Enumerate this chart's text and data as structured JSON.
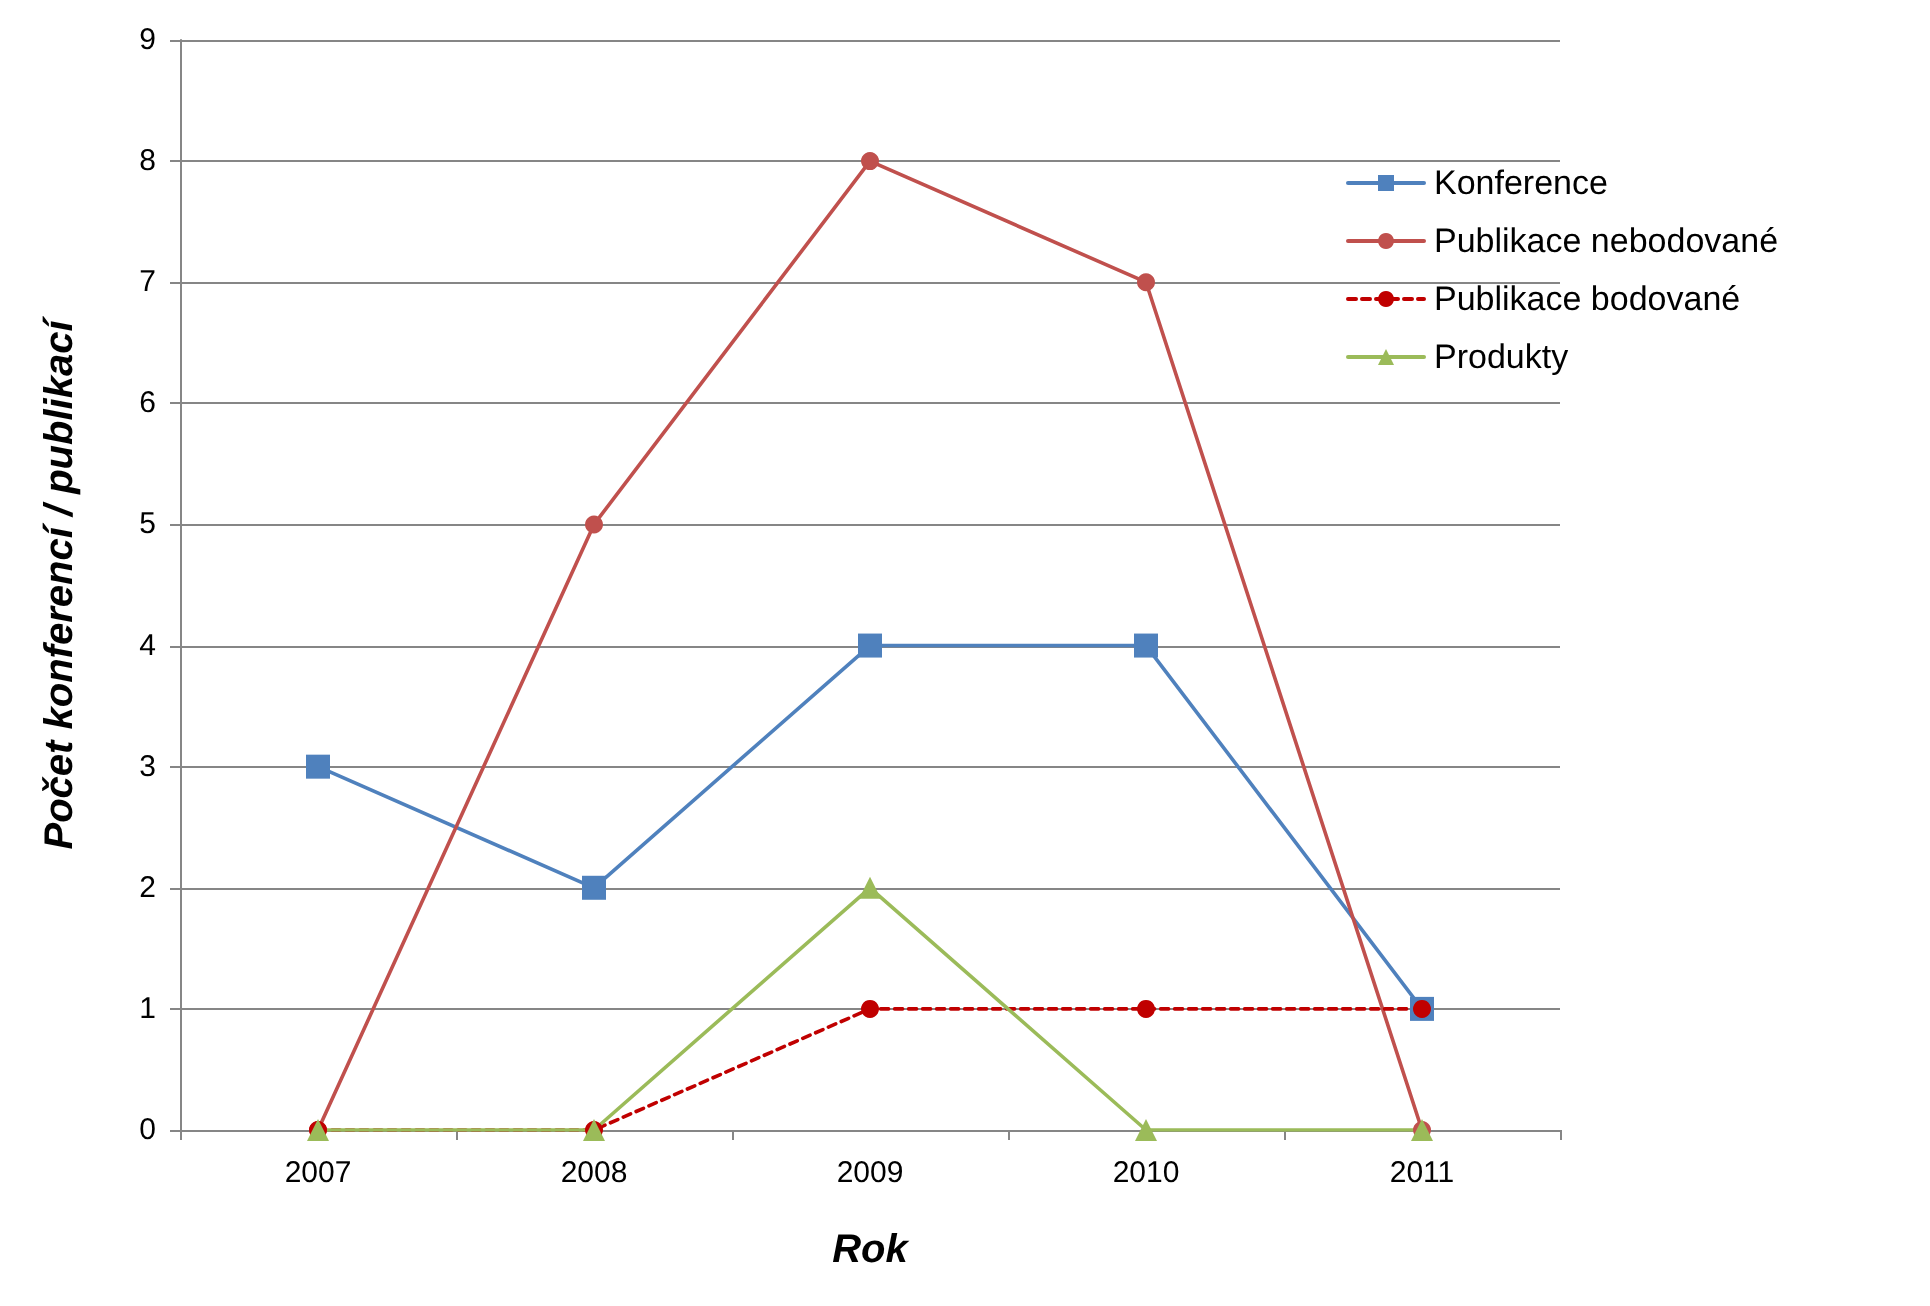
{
  "chart_data": {
    "type": "line",
    "xlabel": "Rok",
    "ylabel": "Počet konferencí / publikací",
    "categories": [
      "2007",
      "2008",
      "2009",
      "2010",
      "2011"
    ],
    "ylim": [
      0,
      9
    ],
    "yticks": [
      0,
      1,
      2,
      3,
      4,
      5,
      6,
      7,
      8,
      9
    ],
    "grid": "y",
    "legend": "right",
    "line_style": "solid",
    "series": [
      {
        "name": "Konference",
        "color": "#4f81bd",
        "marker": "square",
        "values": [
          3,
          2,
          4,
          4,
          1
        ]
      },
      {
        "name": "Publikace nebodované",
        "color": "#c0504d",
        "marker": "circle",
        "values": [
          0,
          5,
          8,
          7,
          0
        ]
      },
      {
        "name": "Publikace bodované",
        "color": "#c00000",
        "marker": "circle",
        "line_style": "dashed",
        "values": [
          0,
          0,
          1,
          1,
          1
        ]
      },
      {
        "name": "Produkty",
        "color": "#9bbb59",
        "marker": "triangle",
        "values": [
          0,
          0,
          2,
          0,
          0
        ]
      }
    ]
  }
}
